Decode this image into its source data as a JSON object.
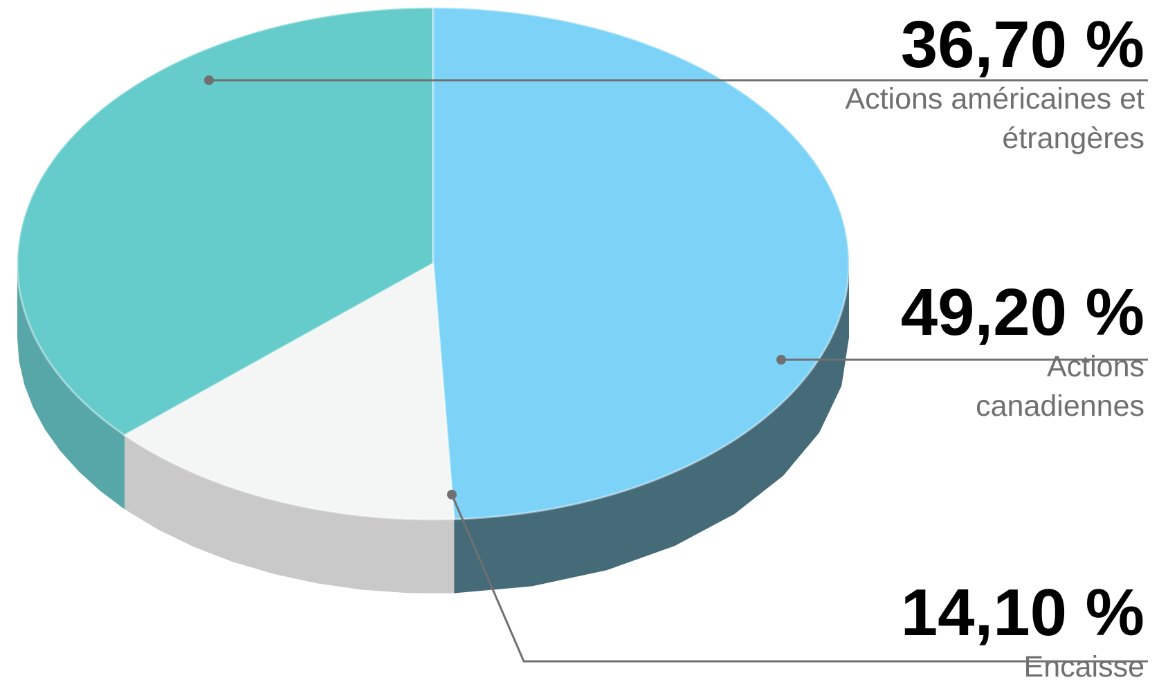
{
  "chart_data": {
    "type": "pie",
    "categories": [
      "Actions américaines et étrangères",
      "Actions canadiennes",
      "Encaisse"
    ],
    "values": [
      36.7,
      49.2,
      14.1
    ],
    "value_labels": [
      "36,70 %",
      "49,20 %",
      "14,10 %"
    ],
    "colors": [
      "#66cbcb",
      "#7dd3f7",
      "#f4f6f5"
    ],
    "side_colors": [
      "#57a7a8",
      "#456a78",
      "#c9c9c9"
    ]
  }
}
